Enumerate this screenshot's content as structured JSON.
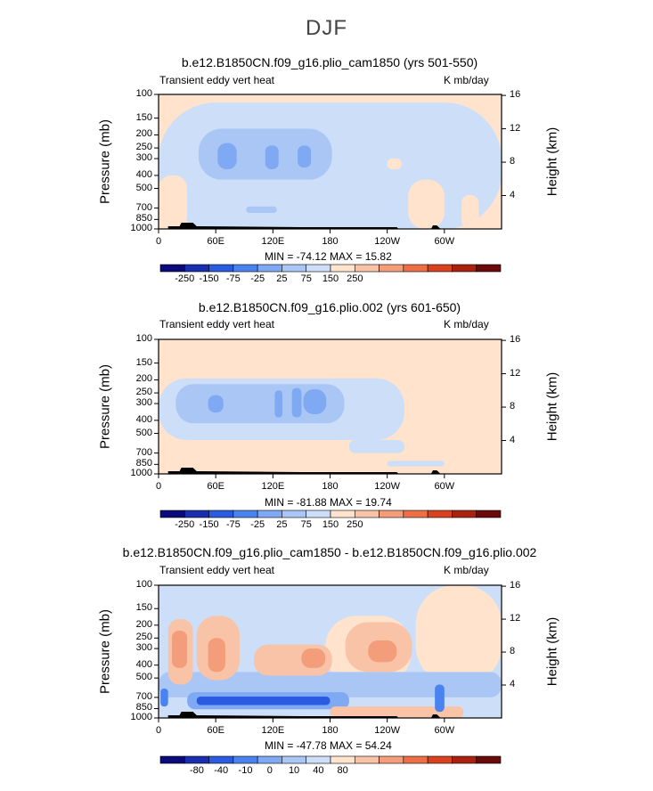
{
  "figure": {
    "title": "DJF",
    "legend_left_label": "Transient eddy vert heat",
    "units": "K mb/day"
  },
  "colors": {
    "scale": [
      "#0a0a7a",
      "#1a2fb0",
      "#2a5be0",
      "#4a83f0",
      "#7fa9f2",
      "#a9c6f4",
      "#cddff8",
      "#ffe3cc",
      "#f8c3a6",
      "#f39d7a",
      "#ee6f45",
      "#d9421f",
      "#a8220f",
      "#6b0a0a"
    ],
    "land": "#000000"
  },
  "chart_data": [
    {
      "type": "heatmap",
      "title": "b.e12.B1850CN.f09_g16.plio_cam1850 (yrs 501-550)",
      "subtitle_left": "Transient eddy vert heat",
      "subtitle_right": "K mb/day",
      "ylabel": "Pressure (mb)",
      "ylabel_right": "Height (km)",
      "x_ticks": [
        "0",
        "60E",
        "120E",
        "180",
        "120W",
        "60W"
      ],
      "x_tick_values": [
        0,
        60,
        120,
        180,
        240,
        300
      ],
      "xlim": [
        0,
        360
      ],
      "y_ticks": [
        "100",
        "150",
        "200",
        "250",
        "300",
        "400",
        "500",
        "700",
        "850",
        "1000"
      ],
      "y_tick_values": [
        100,
        150,
        200,
        250,
        300,
        400,
        500,
        700,
        850,
        1000
      ],
      "ylim": [
        100,
        1000
      ],
      "height_ticks": [
        "16",
        "12",
        "8",
        "4"
      ],
      "height_tick_values": [
        16,
        12,
        8,
        4
      ],
      "stats": "MIN = -74.12   MAX =   15.82",
      "colorbar_labels": [
        "-250",
        "-150",
        "-75",
        "-25",
        "25",
        "75",
        "150",
        "250"
      ],
      "colorbar_label_slots": [
        1,
        3,
        5,
        7,
        9,
        11,
        13,
        15
      ],
      "contour_levels": [
        -300,
        -250,
        -200,
        -150,
        -100,
        -75,
        -50,
        -25,
        0,
        25,
        50,
        75,
        100,
        150,
        200,
        250,
        300
      ],
      "background_level": 7,
      "features": [
        {
          "lon": [
            0,
            360
          ],
          "p": [
            115,
            1000
          ],
          "level": 6
        },
        {
          "lon": [
            42,
            182
          ],
          "p": [
            180,
            430
          ],
          "level": 5
        },
        {
          "lon": [
            62,
            82
          ],
          "p": [
            230,
            360
          ],
          "level": 4
        },
        {
          "lon": [
            112,
            126
          ],
          "p": [
            240,
            360
          ],
          "level": 4
        },
        {
          "lon": [
            146,
            160
          ],
          "p": [
            240,
            350
          ],
          "level": 4
        },
        {
          "lon": [
            0,
            30
          ],
          "p": [
            400,
            1000
          ],
          "level": 7
        },
        {
          "lon": [
            262,
            300
          ],
          "p": [
            430,
            1000
          ],
          "level": 7
        },
        {
          "lon": [
            318,
            336
          ],
          "p": [
            560,
            1000
          ],
          "level": 7
        },
        {
          "lon": [
            240,
            255
          ],
          "p": [
            300,
            360
          ],
          "level": 7
        },
        {
          "lon": [
            92,
            124
          ],
          "p": [
            680,
            760
          ],
          "level": 5
        }
      ]
    },
    {
      "type": "heatmap",
      "title": "b.e12.B1850CN.f09_g16.plio.002 (yrs 601-650)",
      "subtitle_left": "Transient eddy vert heat",
      "subtitle_right": "K mb/day",
      "ylabel": "Pressure (mb)",
      "ylabel_right": "Height (km)",
      "x_ticks": [
        "0",
        "60E",
        "120E",
        "180",
        "120W",
        "60W"
      ],
      "x_tick_values": [
        0,
        60,
        120,
        180,
        240,
        300
      ],
      "xlim": [
        0,
        360
      ],
      "y_ticks": [
        "100",
        "150",
        "200",
        "250",
        "300",
        "400",
        "500",
        "700",
        "850",
        "1000"
      ],
      "y_tick_values": [
        100,
        150,
        200,
        250,
        300,
        400,
        500,
        700,
        850,
        1000
      ],
      "ylim": [
        100,
        1000
      ],
      "height_ticks": [
        "16",
        "12",
        "8",
        "4"
      ],
      "height_tick_values": [
        16,
        12,
        8,
        4
      ],
      "stats": "MIN = -81.88   MAX =   19.74",
      "colorbar_labels": [
        "-250",
        "-150",
        "-75",
        "-25",
        "25",
        "75",
        "150",
        "250"
      ],
      "colorbar_label_slots": [
        1,
        3,
        5,
        7,
        9,
        11,
        13,
        15
      ],
      "contour_levels": [
        -300,
        -250,
        -200,
        -150,
        -100,
        -75,
        -50,
        -25,
        0,
        25,
        50,
        75,
        100,
        150,
        200,
        250,
        300
      ],
      "background_level": 7,
      "features": [
        {
          "lon": [
            0,
            258
          ],
          "p": [
            195,
            560
          ],
          "level": 6
        },
        {
          "lon": [
            200,
            258
          ],
          "p": [
            560,
            700
          ],
          "level": 6
        },
        {
          "lon": [
            18,
            195
          ],
          "p": [
            215,
            420
          ],
          "level": 5
        },
        {
          "lon": [
            20,
            32
          ],
          "p": [
            250,
            350
          ],
          "level": 5
        },
        {
          "lon": [
            52,
            68
          ],
          "p": [
            260,
            350
          ],
          "level": 4
        },
        {
          "lon": [
            122,
            130
          ],
          "p": [
            240,
            380
          ],
          "level": 4
        },
        {
          "lon": [
            140,
            150
          ],
          "p": [
            230,
            380
          ],
          "level": 4
        },
        {
          "lon": [
            152,
            176
          ],
          "p": [
            235,
            360
          ],
          "level": 4
        },
        {
          "lon": [
            240,
            300
          ],
          "p": [
            800,
            880
          ],
          "level": 6
        }
      ]
    },
    {
      "type": "heatmap",
      "title": "b.e12.B1850CN.f09_g16.plio_cam1850 - b.e12.B1850CN.f09_g16.plio.002",
      "subtitle_left": "Transient eddy vert heat",
      "subtitle_right": "K mb/day",
      "ylabel": "Pressure (mb)",
      "ylabel_right": "Height (km)",
      "x_ticks": [
        "0",
        "60E",
        "120E",
        "180",
        "120W",
        "60W"
      ],
      "x_tick_values": [
        0,
        60,
        120,
        180,
        240,
        300
      ],
      "xlim": [
        0,
        360
      ],
      "y_ticks": [
        "100",
        "150",
        "200",
        "250",
        "300",
        "400",
        "500",
        "700",
        "850",
        "1000"
      ],
      "y_tick_values": [
        100,
        150,
        200,
        250,
        300,
        400,
        500,
        700,
        850,
        1000
      ],
      "ylim": [
        100,
        1000
      ],
      "height_ticks": [
        "16",
        "12",
        "8",
        "4"
      ],
      "height_tick_values": [
        16,
        12,
        8,
        4
      ],
      "stats": "MIN = -47.78   MAX =   54.24",
      "colorbar_labels": [
        "-80",
        "-40",
        "-10",
        "0",
        "10",
        "40",
        "80"
      ],
      "colorbar_label_slots": [
        2,
        4,
        6,
        8,
        10,
        12,
        14
      ],
      "contour_levels": [
        -100,
        -80,
        -60,
        -40,
        -20,
        -10,
        -5,
        0,
        5,
        10,
        20,
        40,
        60,
        80,
        100
      ],
      "background_level": 6,
      "features": [
        {
          "lon": [
            270,
            360
          ],
          "p": [
            100,
            560
          ],
          "level": 7
        },
        {
          "lon": [
            175,
            265
          ],
          "p": [
            170,
            560
          ],
          "level": 7
        },
        {
          "lon": [
            0,
            360
          ],
          "p": [
            450,
            700
          ],
          "level": 5
        },
        {
          "lon": [
            10,
            36
          ],
          "p": [
            180,
            560
          ],
          "level": 8
        },
        {
          "lon": [
            14,
            30
          ],
          "p": [
            220,
            420
          ],
          "level": 9
        },
        {
          "lon": [
            40,
            85
          ],
          "p": [
            170,
            520
          ],
          "level": 8
        },
        {
          "lon": [
            52,
            70
          ],
          "p": [
            250,
            450
          ],
          "level": 9
        },
        {
          "lon": [
            100,
            182
          ],
          "p": [
            280,
            480
          ],
          "level": 8
        },
        {
          "lon": [
            150,
            175
          ],
          "p": [
            300,
            420
          ],
          "level": 9
        },
        {
          "lon": [
            196,
            266
          ],
          "p": [
            190,
            450
          ],
          "level": 8
        },
        {
          "lon": [
            220,
            250
          ],
          "p": [
            260,
            380
          ],
          "level": 9
        },
        {
          "lon": [
            30,
            200
          ],
          "p": [
            640,
            860
          ],
          "level": 4
        },
        {
          "lon": [
            40,
            180
          ],
          "p": [
            690,
            800
          ],
          "level": 2
        },
        {
          "lon": [
            180,
            320
          ],
          "p": [
            820,
            1000
          ],
          "level": 8
        },
        {
          "lon": [
            290,
            300
          ],
          "p": [
            560,
            900
          ],
          "level": 3
        },
        {
          "lon": [
            2,
            10
          ],
          "p": [
            600,
            820
          ],
          "level": 3
        }
      ]
    }
  ]
}
